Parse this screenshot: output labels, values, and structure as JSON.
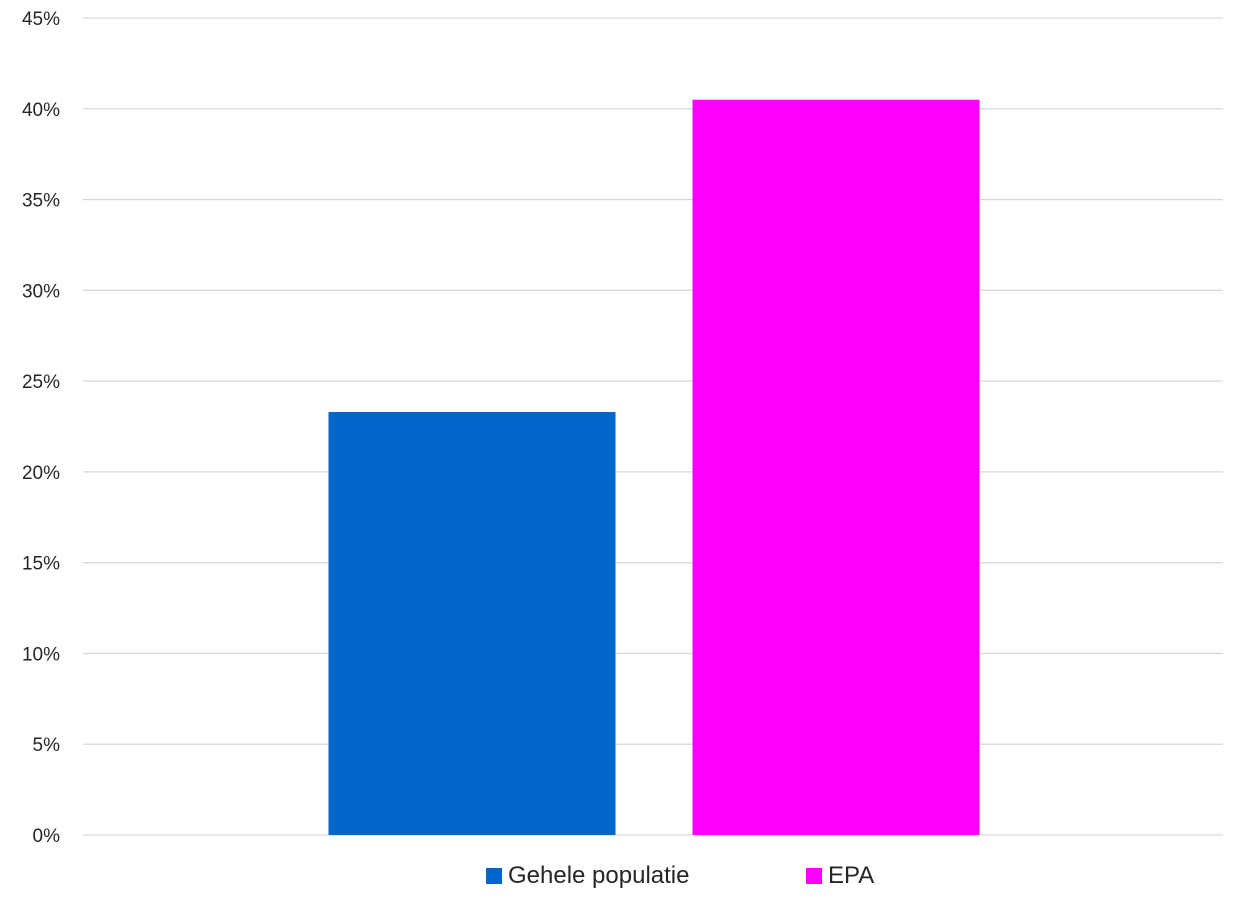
{
  "chart_data": {
    "type": "bar",
    "title": "",
    "xlabel": "",
    "ylabel": "",
    "categories": [
      ""
    ],
    "series": [
      {
        "name": "Gehele populatie",
        "values": [
          23.3
        ],
        "color": "#0066CC"
      },
      {
        "name": "EPA",
        "values": [
          40.5
        ],
        "color": "#FF00FF"
      }
    ],
    "ylim": [
      0,
      45
    ],
    "ytick_step": 5,
    "ytick_labels": [
      "0%",
      "5%",
      "10%",
      "15%",
      "20%",
      "25%",
      "30%",
      "35%",
      "40%",
      "45%"
    ],
    "value_format": "percent",
    "grid": true,
    "legend_position": "bottom"
  }
}
